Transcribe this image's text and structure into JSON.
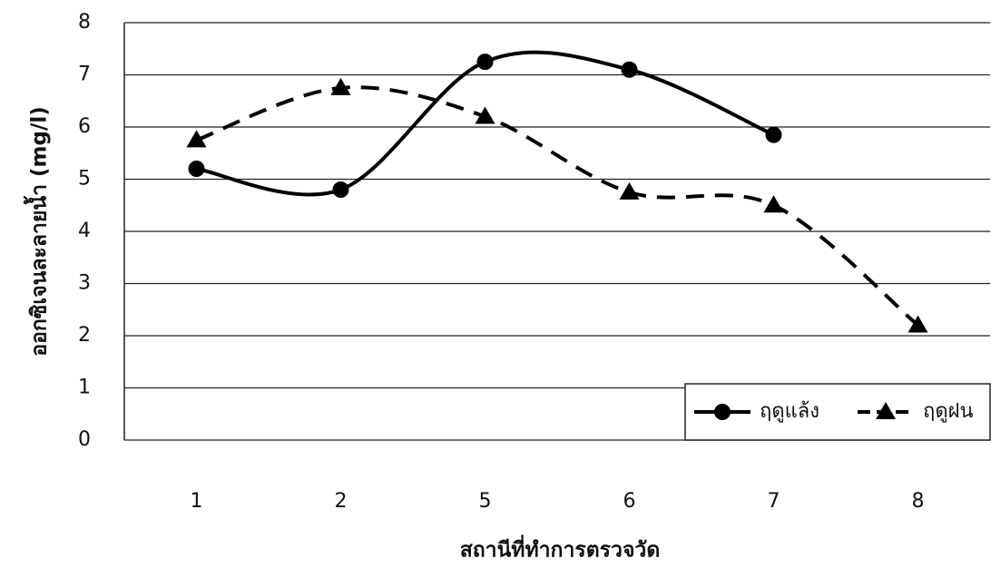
{
  "chart_data": {
    "type": "line",
    "x_label": "สถานีที่ทำการตรวจวัด",
    "y_label": "ออกซิเจนละลายน้ำ (mg/l)",
    "categories": [
      "1",
      "2",
      "5",
      "6",
      "7",
      "8"
    ],
    "series": [
      {
        "name": "ฤดูแล้ง",
        "color": "#000000",
        "line_style": "solid",
        "marker": "circle",
        "values": [
          5.2,
          4.8,
          7.25,
          7.1,
          5.85,
          null
        ]
      },
      {
        "name": "ฤดูฝน",
        "color": "#000000",
        "line_style": "dashed",
        "marker": "triangle",
        "values": [
          5.75,
          6.75,
          6.2,
          4.75,
          4.5,
          2.2
        ]
      }
    ],
    "ylim": [
      0,
      8
    ],
    "yticks": [
      0,
      1,
      2,
      3,
      4,
      5,
      6,
      7,
      8
    ],
    "grid": true,
    "smooth": true,
    "legend": "bottom-right"
  }
}
